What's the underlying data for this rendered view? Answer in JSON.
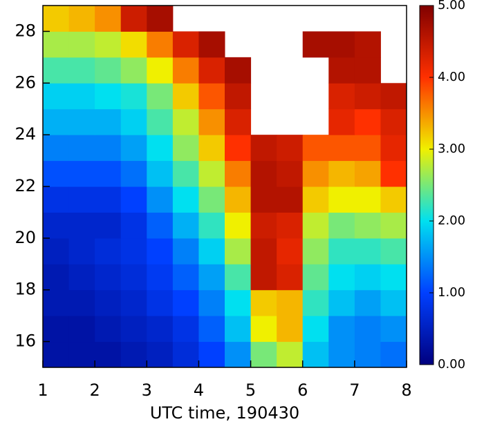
{
  "chart_data": {
    "type": "heatmap",
    "x_label": "UTC time, 190430",
    "x": [
      1.25,
      1.75,
      2.25,
      2.75,
      3.25,
      3.75,
      4.25,
      4.75,
      5.25,
      5.75,
      6.25,
      6.75,
      7.25,
      7.75
    ],
    "y": [
      15.5,
      16.5,
      17.5,
      18.5,
      19.5,
      20.5,
      21.5,
      22.5,
      23.5,
      24.5,
      25.5,
      26.5,
      27.5,
      28.5
    ],
    "z": [
      [
        0.3,
        0.3,
        0.3,
        0.4,
        0.5,
        0.7,
        1.0,
        1.5,
        2.5,
        2.8,
        1.8,
        1.5,
        1.4,
        1.3
      ],
      [
        0.3,
        0.3,
        0.4,
        0.5,
        0.6,
        0.8,
        1.2,
        1.8,
        3.0,
        3.3,
        2.0,
        1.5,
        1.4,
        1.5
      ],
      [
        0.4,
        0.4,
        0.5,
        0.6,
        0.8,
        1.0,
        1.4,
        2.0,
        3.2,
        3.3,
        2.2,
        1.8,
        1.6,
        1.8
      ],
      [
        0.4,
        0.5,
        0.6,
        0.7,
        0.9,
        1.2,
        1.6,
        2.3,
        4.5,
        4.3,
        2.4,
        2.0,
        1.9,
        2.0
      ],
      [
        0.5,
        0.6,
        0.7,
        0.8,
        1.0,
        1.4,
        1.9,
        2.7,
        4.5,
        4.2,
        2.6,
        2.2,
        2.2,
        2.3
      ],
      [
        0.6,
        0.6,
        0.6,
        0.8,
        1.2,
        1.7,
        2.2,
        3.0,
        4.4,
        4.3,
        2.8,
        2.5,
        2.6,
        2.7
      ],
      [
        0.8,
        0.8,
        0.8,
        1.0,
        1.5,
        2.0,
        2.5,
        3.3,
        4.6,
        4.6,
        3.2,
        3.0,
        3.0,
        3.2
      ],
      [
        1.1,
        1.1,
        1.1,
        1.3,
        1.8,
        2.3,
        2.8,
        3.6,
        4.6,
        4.5,
        3.5,
        3.3,
        3.4,
        4.0
      ],
      [
        1.4,
        1.4,
        1.4,
        1.6,
        2.0,
        2.6,
        3.2,
        4.0,
        4.5,
        4.4,
        3.8,
        3.8,
        3.8,
        4.2
      ],
      [
        1.7,
        1.7,
        1.7,
        1.9,
        2.3,
        2.8,
        3.5,
        4.3,
        null,
        null,
        null,
        4.2,
        4.0,
        4.3
      ],
      [
        1.9,
        1.9,
        2.0,
        2.1,
        2.5,
        3.2,
        3.8,
        4.5,
        null,
        null,
        null,
        4.3,
        4.4,
        4.5
      ],
      [
        2.3,
        2.3,
        2.4,
        2.6,
        3.0,
        3.6,
        4.3,
        4.7,
        null,
        null,
        null,
        4.6,
        4.6,
        null
      ],
      [
        2.7,
        2.7,
        2.8,
        3.1,
        3.6,
        4.3,
        4.7,
        null,
        null,
        null,
        4.7,
        4.7,
        4.6,
        null
      ],
      [
        3.2,
        3.3,
        3.5,
        4.4,
        4.7,
        null,
        null,
        null,
        null,
        null,
        null,
        null,
        null,
        null
      ]
    ],
    "xlim": [
      1,
      8
    ],
    "xticks": [
      1,
      2,
      3,
      4,
      5,
      6,
      7,
      8
    ],
    "ylim": [
      15,
      29
    ],
    "yticks": [
      16,
      18,
      20,
      22,
      24,
      26,
      28
    ],
    "zlim": [
      0,
      5
    ],
    "zticks": [
      {
        "value": 0,
        "label": "0.00"
      },
      {
        "value": 1,
        "label": "1.00"
      },
      {
        "value": 2,
        "label": "2.00"
      },
      {
        "value": 3,
        "label": "3.00"
      },
      {
        "value": 4,
        "label": "4.00"
      },
      {
        "value": 5,
        "label": "5.00"
      }
    ]
  }
}
